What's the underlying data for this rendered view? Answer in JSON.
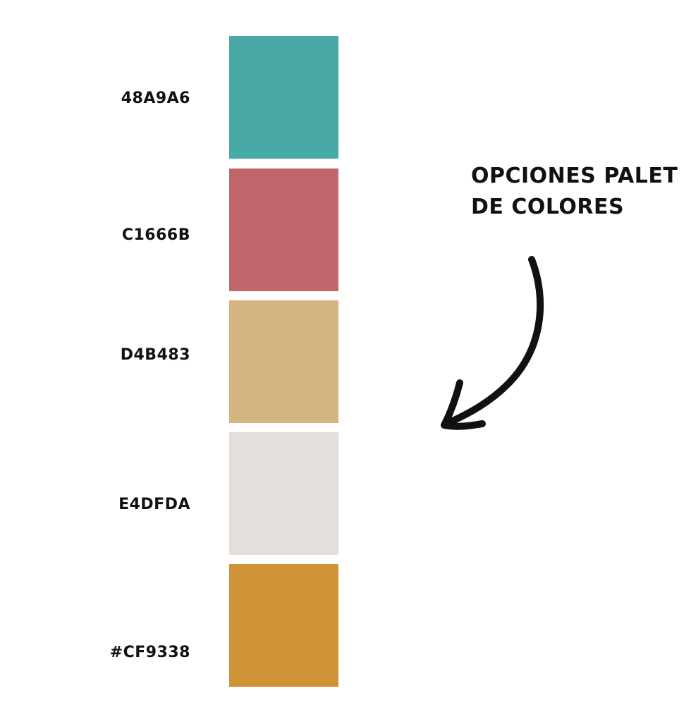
{
  "heading": {
    "line1": "OPCIONES PALET",
    "line2": "DE COLORES"
  },
  "swatches": [
    {
      "label": "48A9A6",
      "color": "#48A9A6"
    },
    {
      "label": "C1666B",
      "color": "#C1666B"
    },
    {
      "label": "D4B483",
      "color": "#D4B483"
    },
    {
      "label": "E4DFDA",
      "color": "#E4DFDA"
    },
    {
      "label": "#CF9338",
      "color": "#CF9338"
    }
  ],
  "arrow_icon": "curved-arrow-icon"
}
